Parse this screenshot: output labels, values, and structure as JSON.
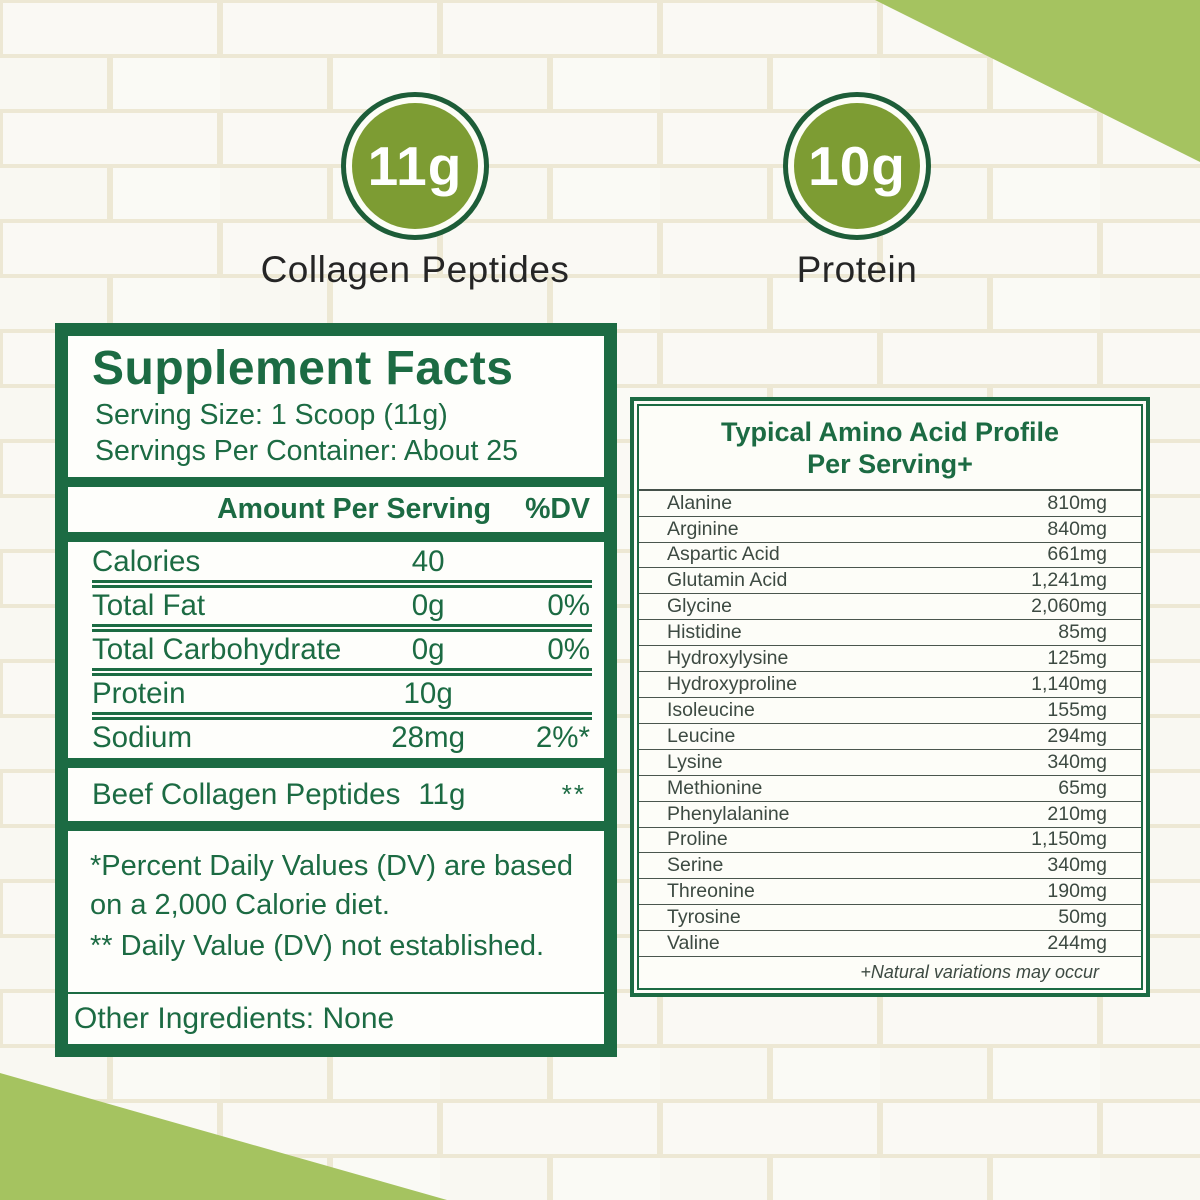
{
  "hero": {
    "badges": [
      {
        "value": "11g",
        "label": "Collagen Peptides"
      },
      {
        "value": "10g",
        "label": "Protein"
      }
    ]
  },
  "supplement_facts": {
    "title": "Supplement Facts",
    "serving_size": "Serving Size: 1 Scoop (11g)",
    "servings_per_container": "Servings Per Container: About 25",
    "amount_header": "Amount Per Serving",
    "dv_header": "%DV",
    "rows": [
      {
        "name": "Calories",
        "amount": "40",
        "dv": ""
      },
      {
        "name": "Total Fat",
        "amount": "0g",
        "dv": "0%"
      },
      {
        "name": "Total Carbohydrate",
        "amount": "0g",
        "dv": "0%"
      },
      {
        "name": "Protein",
        "amount": "10g",
        "dv": ""
      },
      {
        "name": "Sodium",
        "amount": "28mg",
        "dv": "2%*"
      }
    ],
    "ingredient_row": {
      "name": "Beef Collagen Peptides",
      "amount": "11g",
      "dv": "**"
    },
    "footnotes": [
      "*Percent Daily Values (DV) are based on a 2,000 Calorie diet.",
      "** Daily Value (DV) not established."
    ],
    "other_ingredients": "Other Ingredients: None"
  },
  "amino_profile": {
    "title_line1": "Typical Amino Acid Profile",
    "title_line2": "Per Serving+",
    "rows": [
      {
        "name": "Alanine",
        "value": "810mg"
      },
      {
        "name": "Arginine",
        "value": "840mg"
      },
      {
        "name": "Aspartic Acid",
        "value": "661mg"
      },
      {
        "name": "Glutamin Acid",
        "value": "1,241mg"
      },
      {
        "name": "Glycine",
        "value": "2,060mg"
      },
      {
        "name": "Histidine",
        "value": "85mg"
      },
      {
        "name": "Hydroxylysine",
        "value": "125mg"
      },
      {
        "name": "Hydroxyproline",
        "value": "1,140mg"
      },
      {
        "name": "Isoleucine",
        "value": "155mg"
      },
      {
        "name": "Leucine",
        "value": "294mg"
      },
      {
        "name": "Lysine",
        "value": "340mg"
      },
      {
        "name": "Methionine",
        "value": "65mg"
      },
      {
        "name": "Phenylalanine",
        "value": "210mg"
      },
      {
        "name": "Proline",
        "value": "1,150mg"
      },
      {
        "name": "Serine",
        "value": "340mg"
      },
      {
        "name": "Threonine",
        "value": "190mg"
      },
      {
        "name": "Tyrosine",
        "value": "50mg"
      },
      {
        "name": "Valine",
        "value": "244mg"
      }
    ],
    "footnote": "+Natural variations may occur"
  },
  "colors": {
    "dark_green": "#1c6b43",
    "olive_green": "#7d9c33",
    "light_green": "#a5c360",
    "amino_text": "#3d4a42",
    "brick_base": "#f6f5ed",
    "mortar": "#e3dcbd"
  }
}
